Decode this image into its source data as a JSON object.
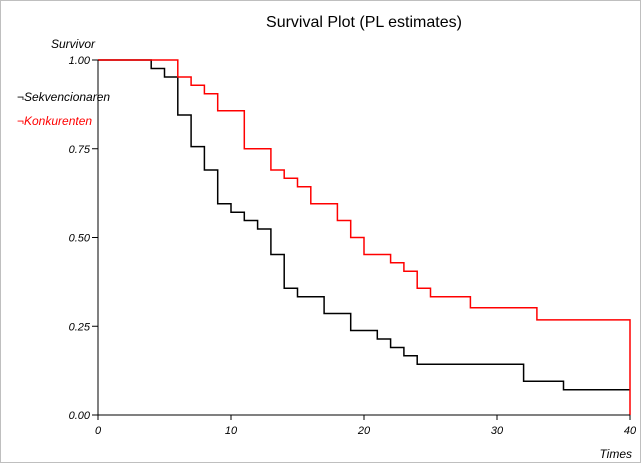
{
  "chart_data": {
    "type": "line",
    "step": true,
    "title": "Survival Plot (PL estimates)",
    "xlabel": "Times",
    "ylabel": "Survivor",
    "xlim": [
      0,
      40
    ],
    "ylim": [
      0,
      1
    ],
    "x_ticks": [
      0,
      10,
      20,
      30,
      40
    ],
    "x_tick_labels": [
      "0",
      "10",
      "20",
      "30",
      "40"
    ],
    "y_ticks": [
      0,
      0.25,
      0.5,
      0.75,
      1
    ],
    "y_tick_labels": [
      "0.00",
      "0.25",
      "0.50",
      "0.75",
      "1.00"
    ],
    "grid": false,
    "legend_position": "top-left",
    "series": [
      {
        "name": "Sekvencionaren",
        "color": "#000000",
        "legend_symbol": "¬",
        "points": [
          [
            0,
            1.0
          ],
          [
            4,
            0.976
          ],
          [
            5,
            0.952
          ],
          [
            6,
            0.845
          ],
          [
            7,
            0.756
          ],
          [
            8,
            0.69
          ],
          [
            9,
            0.595
          ],
          [
            10,
            0.571
          ],
          [
            11,
            0.548
          ],
          [
            12,
            0.524
          ],
          [
            13,
            0.452
          ],
          [
            14,
            0.357
          ],
          [
            15,
            0.333
          ],
          [
            17,
            0.286
          ],
          [
            19,
            0.238
          ],
          [
            21,
            0.214
          ],
          [
            22,
            0.19
          ],
          [
            23,
            0.167
          ],
          [
            24,
            0.143
          ],
          [
            32,
            0.095
          ],
          [
            35,
            0.071
          ],
          [
            40,
            0.071
          ]
        ]
      },
      {
        "name": "Konkurenten",
        "color": "#ff0000",
        "legend_symbol": "¬",
        "points": [
          [
            0,
            1.0
          ],
          [
            6,
            0.952
          ],
          [
            7,
            0.929
          ],
          [
            8,
            0.905
          ],
          [
            9,
            0.857
          ],
          [
            11,
            0.75
          ],
          [
            13,
            0.69
          ],
          [
            14,
            0.667
          ],
          [
            15,
            0.643
          ],
          [
            16,
            0.595
          ],
          [
            18,
            0.548
          ],
          [
            19,
            0.5
          ],
          [
            20,
            0.452
          ],
          [
            22,
            0.429
          ],
          [
            23,
            0.405
          ],
          [
            24,
            0.357
          ],
          [
            25,
            0.333
          ],
          [
            28,
            0.302
          ],
          [
            33,
            0.268
          ],
          [
            40,
            0.268
          ],
          [
            40,
            0.0
          ]
        ]
      }
    ]
  }
}
